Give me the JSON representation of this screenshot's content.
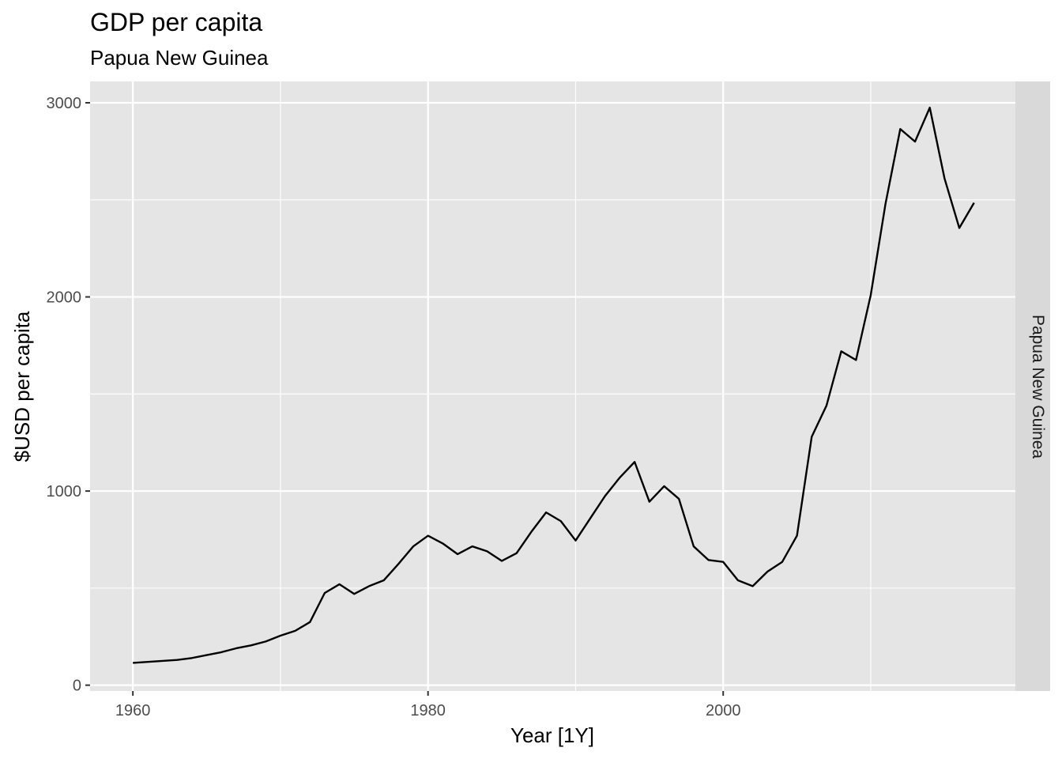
{
  "chart_data": {
    "type": "line",
    "title": "GDP per capita",
    "subtitle": "Papua New Guinea",
    "xlabel": "Year [1Y]",
    "ylabel": "$USD per capita",
    "facet_label": "Papua New Guinea",
    "xlim": [
      1957.1,
      2019.8
    ],
    "ylim": [
      -30,
      3110
    ],
    "x_ticks": [
      1960,
      1980,
      2000
    ],
    "y_ticks": [
      0,
      1000,
      2000,
      3000
    ],
    "x_minor": [
      1970,
      1990,
      2010
    ],
    "y_minor": [
      500,
      1500,
      2500
    ],
    "grid": true,
    "colors": {
      "panel": "#e5e5e5",
      "grid": "#ffffff",
      "strip": "#d9d9d9",
      "line": "#000000"
    },
    "series": [
      {
        "x": [
          1960,
          1961,
          1962,
          1963,
          1964,
          1965,
          1966,
          1967,
          1968,
          1969,
          1970,
          1971,
          1972,
          1973,
          1974,
          1975,
          1976,
          1977,
          1978,
          1979,
          1980,
          1981,
          1982,
          1983,
          1984,
          1985,
          1986,
          1987,
          1988,
          1989,
          1990,
          1991,
          1992,
          1993,
          1994,
          1995,
          1996,
          1997,
          1998,
          1999,
          2000,
          2001,
          2002,
          2003,
          2004,
          2005,
          2006,
          2007,
          2008,
          2009,
          2010,
          2011,
          2012,
          2013,
          2014,
          2015,
          2016,
          2017
        ],
        "values": [
          115,
          120,
          125,
          130,
          140,
          155,
          170,
          190,
          205,
          225,
          255,
          280,
          325,
          475,
          520,
          470,
          510,
          540,
          625,
          715,
          770,
          730,
          675,
          715,
          690,
          640,
          680,
          790,
          890,
          845,
          745,
          860,
          975,
          1070,
          1150,
          945,
          1025,
          960,
          715,
          645,
          635,
          540,
          510,
          585,
          635,
          770,
          1280,
          1440,
          1720,
          1675,
          2010,
          2480,
          2865,
          2800,
          2975,
          2610,
          2355,
          2485
        ]
      }
    ]
  }
}
